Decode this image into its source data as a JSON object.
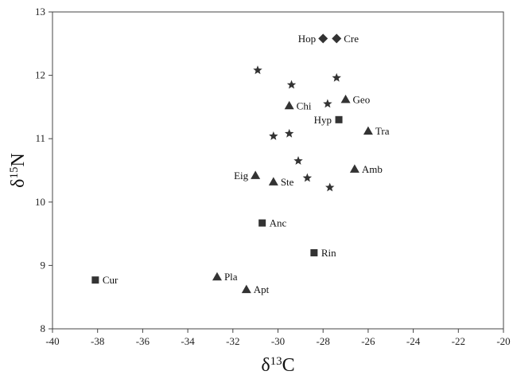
{
  "chart_data": {
    "type": "scatter",
    "xlabel": "δ13C",
    "ylabel": "δ15N",
    "xlim": [
      -40,
      -20
    ],
    "ylim": [
      8,
      13
    ],
    "x_ticks": [
      -40,
      -38,
      -36,
      -34,
      -32,
      -30,
      -28,
      -26,
      -24,
      -22,
      -20
    ],
    "y_ticks": [
      8,
      9,
      10,
      11,
      12,
      13
    ],
    "grid": false,
    "series": [
      {
        "marker": "diamond",
        "color": "#333333",
        "points": [
          {
            "label": "Hop",
            "x": -28.0,
            "y": 12.58
          },
          {
            "label": "Cre",
            "x": -27.4,
            "y": 12.58
          }
        ]
      },
      {
        "marker": "square",
        "color": "#333333",
        "points": [
          {
            "label": "Hyp",
            "x": -27.3,
            "y": 11.3
          },
          {
            "label": "Anc",
            "x": -30.7,
            "y": 9.67
          },
          {
            "label": "Rin",
            "x": -28.4,
            "y": 9.2
          },
          {
            "label": "Cur",
            "x": -38.1,
            "y": 8.77
          }
        ]
      },
      {
        "marker": "triangle",
        "color": "#333333",
        "points": [
          {
            "label": "Chi",
            "x": -29.5,
            "y": 11.52
          },
          {
            "label": "Geo",
            "x": -27.0,
            "y": 11.62
          },
          {
            "label": "Tra",
            "x": -26.0,
            "y": 11.12
          },
          {
            "label": "Amb",
            "x": -26.6,
            "y": 10.52
          },
          {
            "label": "Eig",
            "x": -31.0,
            "y": 10.42
          },
          {
            "label": "Ste",
            "x": -30.2,
            "y": 10.32
          },
          {
            "label": "Pla",
            "x": -32.7,
            "y": 8.82
          },
          {
            "label": "Apt",
            "x": -31.4,
            "y": 8.62
          }
        ]
      },
      {
        "marker": "star",
        "color": "#333333",
        "points": [
          {
            "x": -30.9,
            "y": 12.08
          },
          {
            "x": -29.4,
            "y": 11.85
          },
          {
            "x": -27.4,
            "y": 11.96
          },
          {
            "x": -27.8,
            "y": 11.55
          },
          {
            "x": -29.5,
            "y": 11.08
          },
          {
            "x": -30.2,
            "y": 11.04
          },
          {
            "x": -29.1,
            "y": 10.65
          },
          {
            "x": -28.7,
            "y": 10.38
          },
          {
            "x": -27.7,
            "y": 10.23
          }
        ]
      }
    ]
  }
}
